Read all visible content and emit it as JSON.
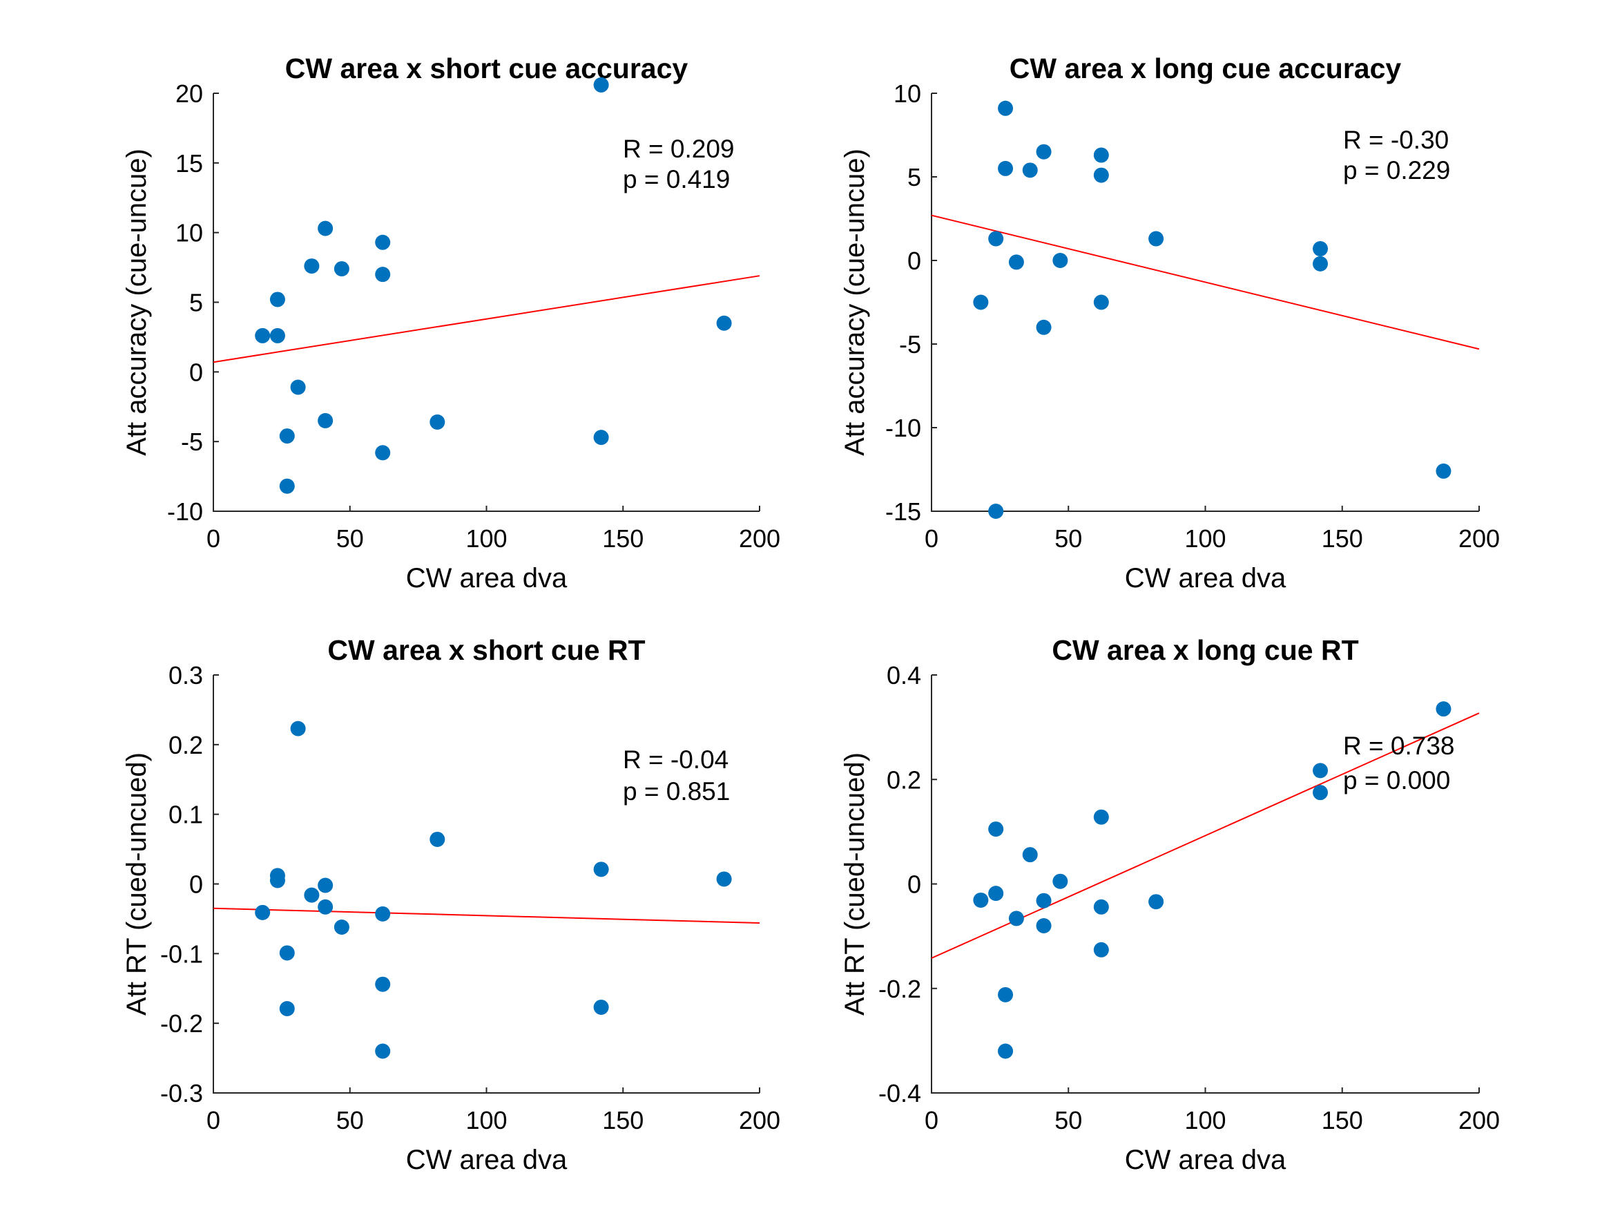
{
  "chart_data": [
    {
      "type": "scatter",
      "title": "CW area x short cue accuracy",
      "xlabel": "CW area dva",
      "ylabel": "Att accuracy (cue-uncue)",
      "xlim": [
        0,
        200
      ],
      "ylim": [
        -10,
        20
      ],
      "xticks": [
        "0",
        "50",
        "100",
        "150",
        "200"
      ],
      "yticks": [
        "-10",
        "-5",
        "0",
        "5",
        "10",
        "15",
        "20"
      ],
      "stats": [
        "R = 0.209",
        "p = 0.419"
      ],
      "points": [
        [
          18,
          2.6
        ],
        [
          23.5,
          5.2
        ],
        [
          23.5,
          2.6
        ],
        [
          27,
          -4.6
        ],
        [
          27,
          -8.2
        ],
        [
          31,
          -1.1
        ],
        [
          36,
          7.6
        ],
        [
          41,
          10.3
        ],
        [
          41,
          -3.5
        ],
        [
          47,
          7.4
        ],
        [
          62,
          9.3
        ],
        [
          62,
          7.0
        ],
        [
          62,
          -5.8
        ],
        [
          82,
          -3.6
        ],
        [
          142,
          20.6
        ],
        [
          142,
          -4.7
        ],
        [
          187,
          3.5
        ]
      ],
      "fit_line": [
        [
          0,
          0.7
        ],
        [
          200,
          6.9
        ]
      ],
      "grid": false,
      "legend": "none",
      "colors": {
        "points": "#0072BD",
        "fit": "#ff0000"
      }
    },
    {
      "type": "scatter",
      "title": "CW area x long cue accuracy",
      "xlabel": "CW area dva",
      "ylabel": "Att accuracy (cue-uncue)",
      "xlim": [
        0,
        200
      ],
      "ylim": [
        -15,
        10
      ],
      "xticks": [
        "0",
        "50",
        "100",
        "150",
        "200"
      ],
      "yticks": [
        "-15",
        "-10",
        "-5",
        "0",
        "5",
        "10"
      ],
      "stats": [
        "R = -0.30",
        "p = 0.229"
      ],
      "points": [
        [
          18,
          -2.5
        ],
        [
          23.5,
          1.3
        ],
        [
          23.5,
          -15.0
        ],
        [
          27,
          9.1
        ],
        [
          27,
          5.5
        ],
        [
          31,
          -0.1
        ],
        [
          36,
          5.4
        ],
        [
          41,
          6.5
        ],
        [
          41,
          -4.0
        ],
        [
          47,
          0.0
        ],
        [
          62,
          6.3
        ],
        [
          62,
          5.1
        ],
        [
          62,
          -2.5
        ],
        [
          82,
          1.3
        ],
        [
          142,
          0.7
        ],
        [
          142,
          -0.2
        ],
        [
          187,
          -12.6
        ]
      ],
      "fit_line": [
        [
          0,
          2.7
        ],
        [
          200,
          -5.3
        ]
      ],
      "grid": false,
      "legend": "none",
      "colors": {
        "points": "#0072BD",
        "fit": "#ff0000"
      }
    },
    {
      "type": "scatter",
      "title": "CW area x short cue RT",
      "xlabel": "CW area dva",
      "ylabel": "Att RT (cued-uncued)",
      "xlim": [
        0,
        200
      ],
      "ylim": [
        -0.3,
        0.3
      ],
      "xticks": [
        "0",
        "50",
        "100",
        "150",
        "200"
      ],
      "yticks": [
        "-0.3",
        "-0.2",
        "-0.1",
        "0",
        "0.1",
        "0.2",
        "0.3"
      ],
      "stats": [
        "R = -0.04",
        "p = 0.851"
      ],
      "points": [
        [
          18,
          -0.041
        ],
        [
          23.5,
          0.012
        ],
        [
          23.5,
          0.005
        ],
        [
          27,
          -0.099
        ],
        [
          27,
          -0.179
        ],
        [
          31,
          0.223
        ],
        [
          36,
          -0.016
        ],
        [
          41,
          -0.002
        ],
        [
          41,
          -0.033
        ],
        [
          47,
          -0.062
        ],
        [
          62,
          -0.043
        ],
        [
          62,
          -0.144
        ],
        [
          62,
          -0.24
        ],
        [
          82,
          0.064
        ],
        [
          142,
          0.021
        ],
        [
          142,
          -0.177
        ],
        [
          187,
          0.007
        ]
      ],
      "fit_line": [
        [
          0,
          -0.035
        ],
        [
          200,
          -0.056
        ]
      ],
      "grid": false,
      "legend": "none",
      "colors": {
        "points": "#0072BD",
        "fit": "#ff0000"
      }
    },
    {
      "type": "scatter",
      "title": "CW area x long cue RT",
      "xlabel": "CW area dva",
      "ylabel": "Att RT (cued-uncued)",
      "xlim": [
        0,
        200
      ],
      "ylim": [
        -0.4,
        0.4
      ],
      "xticks": [
        "0",
        "50",
        "100",
        "150",
        "200"
      ],
      "yticks": [
        "-0.4",
        "-0.2",
        "0",
        "0.2",
        "0.4"
      ],
      "stats": [
        "R = 0.738",
        "p = 0.000"
      ],
      "points": [
        [
          18,
          -0.031
        ],
        [
          23.5,
          0.105
        ],
        [
          23.5,
          -0.018
        ],
        [
          27,
          -0.212
        ],
        [
          27,
          -0.32
        ],
        [
          31,
          -0.066
        ],
        [
          36,
          0.056
        ],
        [
          41,
          -0.032
        ],
        [
          41,
          -0.08
        ],
        [
          47,
          0.005
        ],
        [
          62,
          0.128
        ],
        [
          62,
          -0.044
        ],
        [
          62,
          -0.126
        ],
        [
          82,
          -0.034
        ],
        [
          142,
          0.217
        ],
        [
          142,
          0.175
        ],
        [
          187,
          0.335
        ]
      ],
      "fit_line": [
        [
          0,
          -0.142
        ],
        [
          200,
          0.327
        ]
      ],
      "grid": false,
      "legend": "none",
      "colors": {
        "points": "#0072BD",
        "fit": "#ff0000"
      }
    }
  ]
}
